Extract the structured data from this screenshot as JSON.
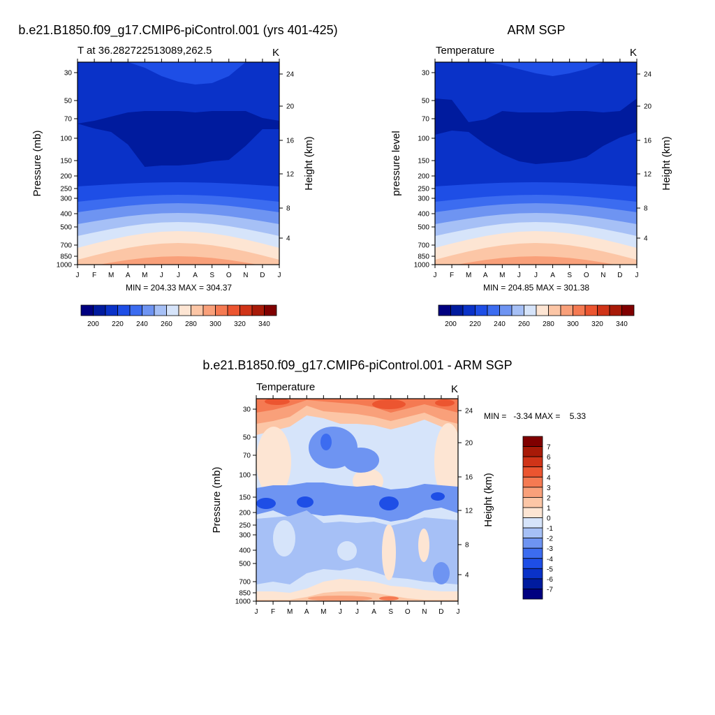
{
  "colorbar_levels_a": [
    "200",
    "220",
    "240",
    "260",
    "280",
    "300",
    "320",
    "340"
  ],
  "colorbar_levels_b": [
    "200",
    "220",
    "240",
    "260",
    "280",
    "300",
    "320",
    "340"
  ],
  "temp_colors": [
    "#000080",
    "#001b9e",
    "#0a32c8",
    "#1e4ee6",
    "#3c6cf0",
    "#6e94f2",
    "#a6c0f6",
    "#d6e4fa",
    "#fde5d3",
    "#fcc6a6",
    "#f9a07a",
    "#f57a52",
    "#ec5530",
    "#d03418",
    "#a81a08",
    "#800000"
  ],
  "diff_colors": [
    "#000080",
    "#001b9e",
    "#0a32c8",
    "#1e4ee6",
    "#3c6cf0",
    "#6e94f2",
    "#a6c0f6",
    "#d6e4fa",
    "#fde5d3",
    "#fcc6a6",
    "#f9a07a",
    "#f57a52",
    "#ec5530",
    "#d03418",
    "#a81a08",
    "#800000"
  ],
  "diff_levels": [
    "7",
    "6",
    "5",
    "4",
    "3",
    "2",
    "1",
    "0",
    "-1",
    "-2",
    "-3",
    "-4",
    "-5",
    "-6",
    "-7"
  ],
  "chart_data": [
    {
      "type": "contour",
      "title": "b.e21.B1850.f09_g17.CMIP6-piControl.001 (yrs 401-425)",
      "subtitle_left": "T at 36.282722513089,262.5",
      "unit": "K",
      "ylabel": "Pressure (mb)",
      "ylabel_right": "Height (km)",
      "x_ticks": [
        "J",
        "F",
        "M",
        "A",
        "M",
        "J",
        "J",
        "A",
        "S",
        "O",
        "N",
        "D",
        "J"
      ],
      "y_ticks": [
        "30",
        "50",
        "70",
        "100",
        "150",
        "200",
        "250",
        "300",
        "400",
        "500",
        "700",
        "850",
        "1000"
      ],
      "y_ticks_right": [
        "24",
        "20",
        "16",
        "12",
        "8",
        "4"
      ],
      "stats": "MIN = 204.33 MAX = 304.37",
      "min": 204.33,
      "max": 304.37
    },
    {
      "type": "contour",
      "title": "ARM SGP",
      "subtitle_left": "Temperature",
      "unit": "K",
      "ylabel": "pressure level",
      "ylabel_right": "Height (km)",
      "x_ticks": [
        "J",
        "F",
        "M",
        "A",
        "M",
        "J",
        "J",
        "A",
        "S",
        "O",
        "N",
        "D",
        "J"
      ],
      "y_ticks": [
        "30",
        "50",
        "70",
        "100",
        "150",
        "200",
        "250",
        "300",
        "400",
        "500",
        "700",
        "850",
        "1000"
      ],
      "y_ticks_right": [
        "24",
        "20",
        "16",
        "12",
        "8",
        "4"
      ],
      "stats": "MIN = 204.85 MAX = 301.38",
      "min": 204.85,
      "max": 301.38
    },
    {
      "type": "contour",
      "title": "b.e21.B1850.f09_g17.CMIP6-piControl.001 - ARM SGP",
      "subtitle_left": "Temperature",
      "unit": "K",
      "ylabel": "Pressure (mb)",
      "ylabel_right": "Height (km)",
      "x_ticks": [
        "J",
        "F",
        "M",
        "A",
        "M",
        "J",
        "J",
        "A",
        "S",
        "O",
        "N",
        "D",
        "J"
      ],
      "y_ticks": [
        "30",
        "50",
        "70",
        "100",
        "150",
        "200",
        "250",
        "300",
        "400",
        "500",
        "700",
        "850",
        "1000"
      ],
      "y_ticks_right": [
        "24",
        "20",
        "16",
        "12",
        "8",
        "4"
      ],
      "stats": "MIN =   -3.34 MAX =    5.33",
      "min": -3.34,
      "max": 5.33
    }
  ]
}
